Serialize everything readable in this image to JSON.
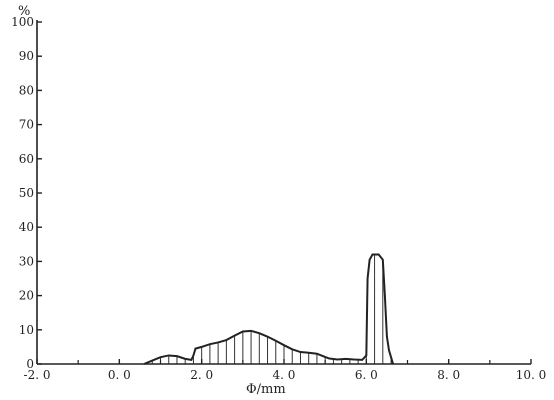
{
  "chart_data": {
    "type": "area",
    "title": "",
    "xlabel": "Φ/mm",
    "ylabel": "%",
    "xlim": [
      -2.0,
      10.0
    ],
    "ylim": [
      0,
      100
    ],
    "grid": false,
    "x_tick_labels": [
      {
        "value": -2.0,
        "text": "-2. 0"
      },
      {
        "value": 0.0,
        "text": "0. 0"
      },
      {
        "value": 2.0,
        "text": "2. 0"
      },
      {
        "value": 4.0,
        "text": "4. 0"
      },
      {
        "value": 6.0,
        "text": "6. 0"
      },
      {
        "value": 8.0,
        "text": "8. 0"
      },
      {
        "value": 10.0,
        "text": "10. 0"
      }
    ],
    "x_minor_ticks": [
      -1.0,
      1.0,
      3.0,
      5.0,
      7.0,
      9.0
    ],
    "y_tick_labels": [
      {
        "value": 0,
        "text": "0"
      },
      {
        "value": 10,
        "text": "10"
      },
      {
        "value": 20,
        "text": "20"
      },
      {
        "value": 30,
        "text": "30"
      },
      {
        "value": 40,
        "text": "40"
      },
      {
        "value": 50,
        "text": "50"
      },
      {
        "value": 60,
        "text": "60"
      },
      {
        "value": 70,
        "text": "70"
      },
      {
        "value": 80,
        "text": "80"
      },
      {
        "value": 90,
        "text": "90"
      },
      {
        "value": 100,
        "text": "100"
      }
    ],
    "hatch_spacing_x": 0.2,
    "series": [
      {
        "x": [
          0.6,
          0.8,
          1.0,
          1.2,
          1.4,
          1.6,
          1.75,
          1.8,
          1.85,
          2.0,
          2.2,
          2.4,
          2.6,
          2.8,
          3.0,
          3.2,
          3.4,
          3.6,
          3.8,
          4.0,
          4.2,
          4.4,
          4.6,
          4.8,
          4.95,
          5.1,
          5.3,
          5.5,
          5.7,
          5.9,
          6.0,
          6.03,
          6.08,
          6.15,
          6.3,
          6.4,
          6.45,
          6.5,
          6.55,
          6.6,
          6.65
        ],
        "y": [
          0,
          1.0,
          2.0,
          2.5,
          2.3,
          1.5,
          1.2,
          2.5,
          4.5,
          5.0,
          5.8,
          6.3,
          7.0,
          8.3,
          9.5,
          9.7,
          9.0,
          8.0,
          6.8,
          5.5,
          4.3,
          3.5,
          3.3,
          3.0,
          2.3,
          1.6,
          1.3,
          1.5,
          1.3,
          1.2,
          2.5,
          25.0,
          30.5,
          32.0,
          32.0,
          30.5,
          20.0,
          8.0,
          4.0,
          2.0,
          0
        ]
      }
    ]
  }
}
